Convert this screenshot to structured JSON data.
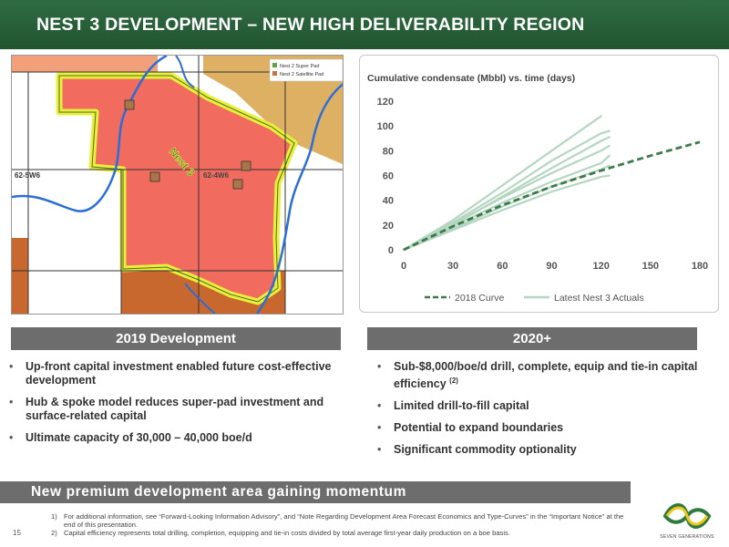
{
  "header": {
    "title": "NEST 3 DEVELOPMENT – NEW HIGH DELIVERABILITY REGION"
  },
  "map": {
    "legend": [
      {
        "label": "Nest 2 Super Pad",
        "color": "#5fa64b"
      },
      {
        "label": "Nest 2 Satellite Pad",
        "color": "#c0773f"
      }
    ],
    "region_label": "Nest 3",
    "township_left": "62-5W6",
    "township_right": "62-4W6",
    "colors": {
      "region": "#f26b5f",
      "outline": "#e7f03a",
      "river": "#2a6ed6",
      "pad": "#a9764a"
    }
  },
  "chart_data": {
    "type": "line",
    "title": "Cumulative condensate (Mbbl) vs. time (days)",
    "xlabel": "",
    "ylabel": "",
    "xlim": [
      0,
      180
    ],
    "ylim": [
      0,
      120
    ],
    "x_ticks": [
      0,
      30,
      60,
      90,
      120,
      150,
      180
    ],
    "y_ticks": [
      0,
      20,
      40,
      60,
      80,
      100,
      120
    ],
    "grid": false,
    "legend_position": "bottom",
    "series": [
      {
        "name": "2018 Curve",
        "style": "dashed",
        "color": "#3d7a4c",
        "points": [
          [
            0,
            0
          ],
          [
            30,
            19
          ],
          [
            60,
            36
          ],
          [
            90,
            51
          ],
          [
            120,
            64
          ],
          [
            150,
            76
          ],
          [
            180,
            87
          ]
        ]
      },
      {
        "name": "Latest Nest 3 Actuals",
        "style": "solid",
        "color": "#b5d6c0",
        "curves": [
          [
            [
              0,
              0
            ],
            [
              30,
              24
            ],
            [
              60,
              52
            ],
            [
              90,
              80
            ],
            [
              120,
              108
            ]
          ],
          [
            [
              0,
              0
            ],
            [
              30,
              22
            ],
            [
              60,
              46
            ],
            [
              90,
              72
            ],
            [
              120,
              94
            ],
            [
              125,
              96
            ]
          ],
          [
            [
              0,
              0
            ],
            [
              30,
              20
            ],
            [
              60,
              43
            ],
            [
              90,
              66
            ],
            [
              120,
              88
            ],
            [
              125,
              91
            ]
          ],
          [
            [
              0,
              0
            ],
            [
              30,
              21
            ],
            [
              60,
              42
            ],
            [
              90,
              62
            ],
            [
              120,
              80
            ],
            [
              125,
              84
            ]
          ],
          [
            [
              0,
              0
            ],
            [
              30,
              19
            ],
            [
              60,
              38
            ],
            [
              90,
              55
            ],
            [
              120,
              70
            ],
            [
              125,
              76
            ]
          ],
          [
            [
              0,
              0
            ],
            [
              30,
              17
            ],
            [
              60,
              35
            ],
            [
              90,
              51
            ],
            [
              120,
              65
            ],
            [
              125,
              68
            ]
          ],
          [
            [
              0,
              0
            ],
            [
              30,
              16
            ],
            [
              60,
              32
            ],
            [
              90,
              47
            ],
            [
              120,
              59
            ],
            [
              125,
              60
            ]
          ]
        ]
      }
    ]
  },
  "left_section": {
    "title": "2019 Development",
    "bullets": [
      "Up-front capital investment enabled future cost-effective development",
      "Hub & spoke model reduces super-pad investment and surface-related capital",
      "Ultimate capacity of 30,000 – 40,000 boe/d"
    ]
  },
  "right_section": {
    "title": "2020+",
    "bullets": [
      {
        "text": "Sub-$8,000/boe/d drill, complete, equip and tie-in capital efficiency",
        "sup": "(2)"
      },
      {
        "text": "Limited drill-to-fill capital",
        "sup": ""
      },
      {
        "text": "Potential to expand boundaries",
        "sup": ""
      },
      {
        "text": "Significant commodity optionality",
        "sup": ""
      }
    ]
  },
  "banner": {
    "text": "New premium development area gaining momentum"
  },
  "footnotes": [
    {
      "num": "1)",
      "text": "For additional information, see “Forward-Looking Information Advisory”, and “Note Regarding Development Area Forecast Economics and Type-Curves” in the “Important Notice” at the end of this presentation."
    },
    {
      "num": "2)",
      "text": "Capital efficiency represents total drilling, completion, equipping and tie-in costs divided by total average first-year daily production on a boe basis."
    }
  ],
  "page_number": "15",
  "logo": {
    "text": "SEVEN GENERATIONS",
    "colors": [
      "#f2c618",
      "#2f7b3f"
    ]
  }
}
